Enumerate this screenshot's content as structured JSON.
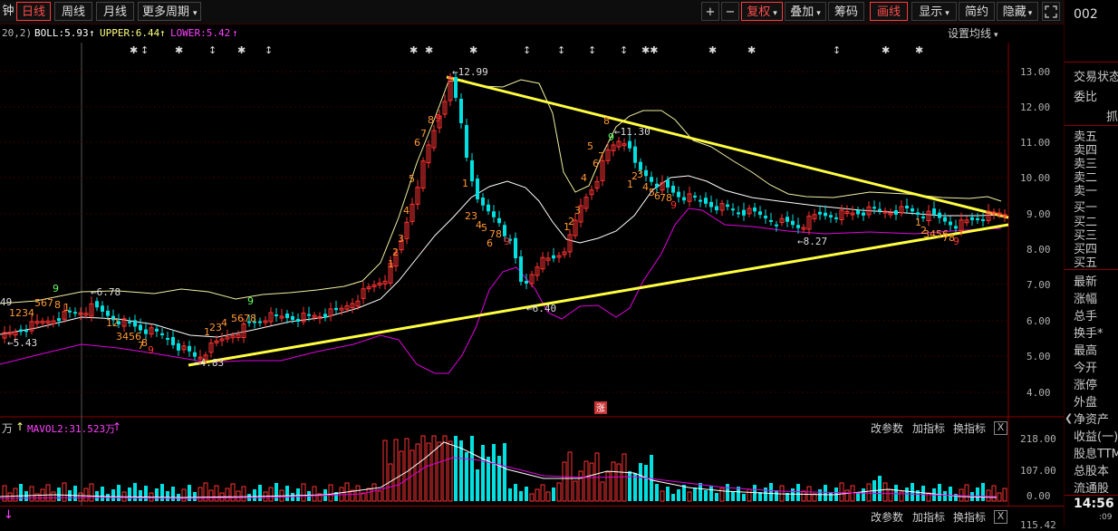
{
  "toolbar": {
    "left_fragment": "钟",
    "tabs": [
      "日线",
      "周线",
      "月线"
    ],
    "more_period": "更多周期",
    "more_period_arrow": "▾",
    "plus": "+",
    "minus": "−",
    "fuquan": "复权",
    "diejia": "叠加",
    "chouma": "筹码",
    "huaxian": "画线",
    "xianshi": "显示",
    "jiancao": "简约",
    "yincang": "隐藏",
    "dropdown_arrow": "▾"
  },
  "indicator": {
    "params": "20,2)",
    "boll": "BOLL:5.93",
    "upper": "UPPER:6.44",
    "lower": "LOWER:5.42",
    "up_arrow": "↑",
    "settings": "设置均线",
    "settings_arrow": "▾"
  },
  "chart_annotations": {
    "high_label": "12.99",
    "mid_high_label": "11.30",
    "left_label_1": "6.78",
    "left_label_2": "5.43",
    "left_edge_val": "49",
    "low_label": "4.83",
    "mid_low_label": "6.40",
    "right_low_label": "8.27",
    "limit_badge": "涨"
  },
  "price_axis": [
    "13.00",
    "12.00",
    "11.00",
    "10.00",
    "9.00",
    "8.00",
    "7.00",
    "6.00",
    "5.00",
    "4.00"
  ],
  "volume_panel": {
    "unit": "万",
    "mavol": "MAVOL2:31.523万",
    "arrow": "↑",
    "axis": [
      "218.00",
      "107.00",
      "0.00"
    ],
    "btn_params": "改参数",
    "btn_add": "加指标",
    "btn_switch": "换指标",
    "close": "X"
  },
  "bottom_bar": {
    "arrow": "↓",
    "btn_params": "改参数",
    "btn_add": "加指标",
    "btn_switch": "换指标",
    "close": "X",
    "partial_val": "115.42"
  },
  "right_panel": {
    "code_partial": "002",
    "arrow_left": "❮",
    "items": [
      "交易状态",
      "委比",
      "抓",
      "卖五",
      "卖四",
      "卖三",
      "卖二",
      "卖一",
      "买一",
      "买二",
      "买三",
      "买四",
      "买五",
      "最新",
      "涨幅",
      "总手",
      "换手*",
      "最高",
      "今开",
      "涨停",
      "外盘",
      "净资产",
      "收益(一)",
      "股息TTM",
      "总股本",
      "流通股"
    ],
    "time": "14:56",
    "time_suffix": ":09"
  },
  "colors": {
    "up": "#ff3333",
    "down": "#00e0e0",
    "trend": "#ffff40",
    "mid": "#ffffff",
    "upper": "#f5f5a0",
    "lower": "#e000e0",
    "seq_orange": "#ff9933",
    "seq_green": "#66ff66"
  }
}
